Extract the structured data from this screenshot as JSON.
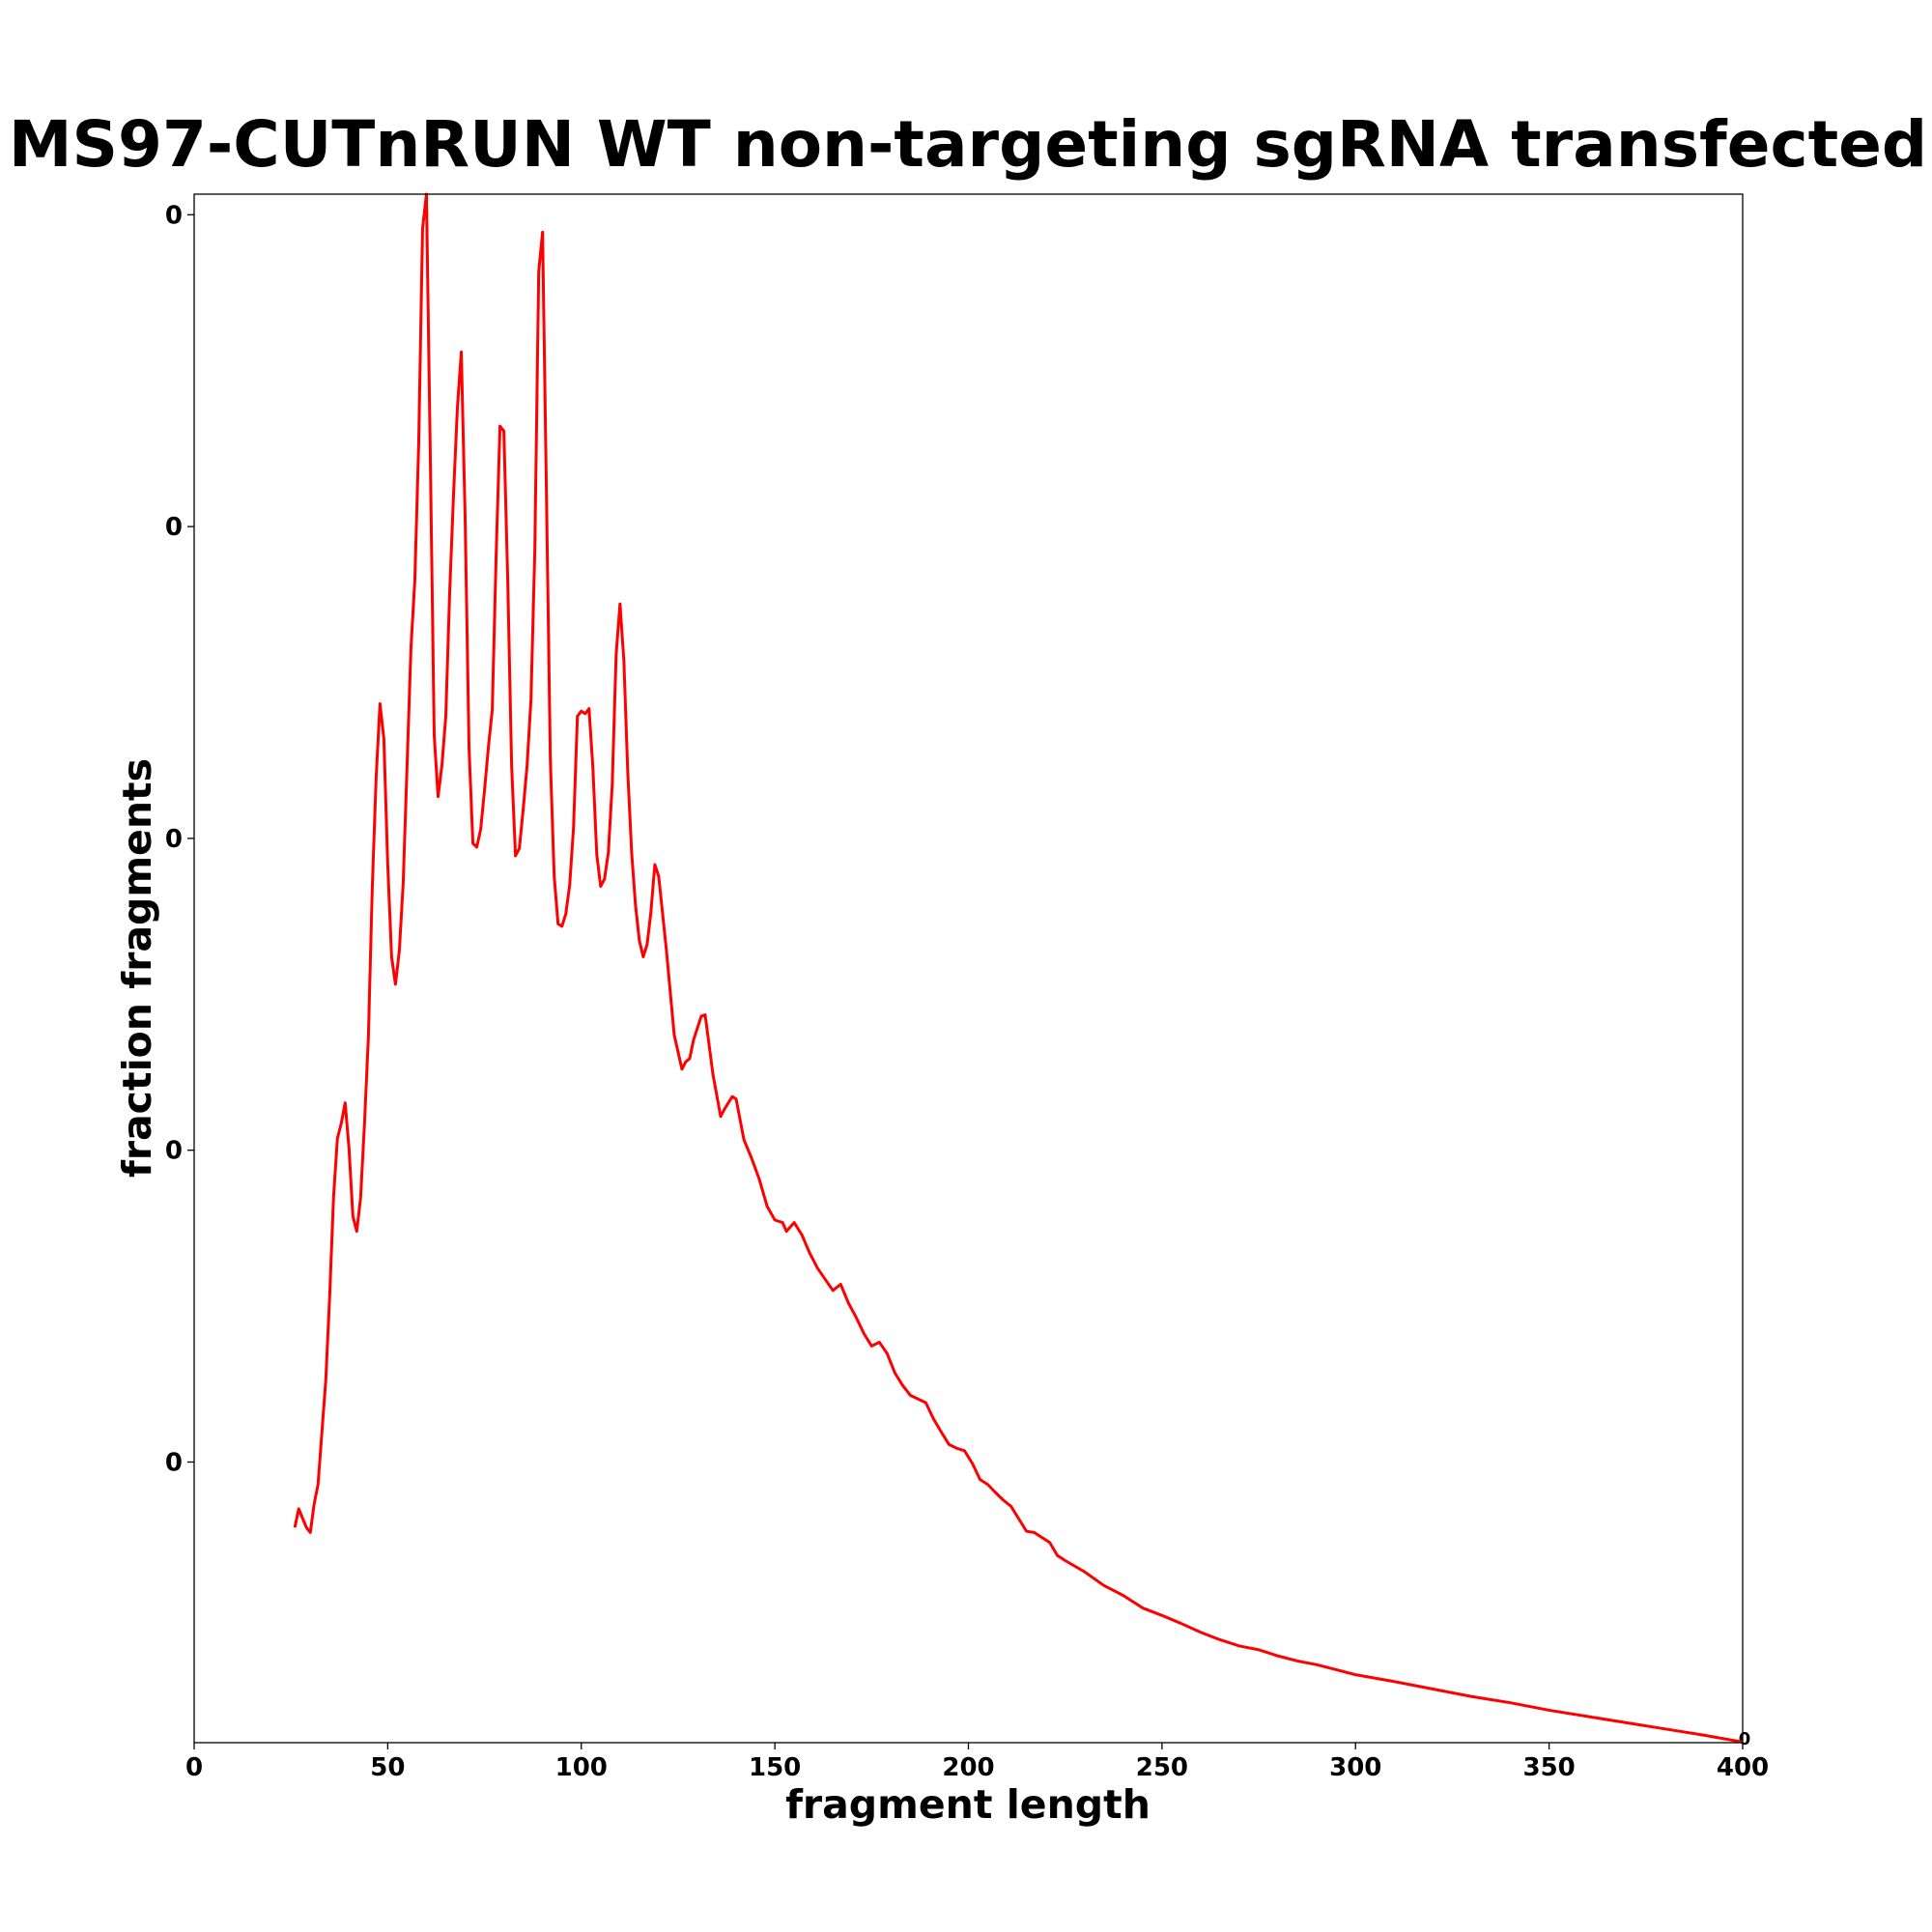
{
  "chart_data": {
    "type": "line",
    "title": "MS97-CUTnRUN WT non-targeting sgRNA transfected",
    "xlabel": "fragment length",
    "ylabel": "fraction fragments",
    "offset_text": "0",
    "color": "#ff0000",
    "x": [
      26,
      27,
      29,
      30,
      31,
      32,
      33,
      34,
      35,
      36,
      37,
      38,
      39,
      40,
      41,
      42,
      43,
      44,
      45,
      46,
      47,
      48,
      49,
      50,
      51,
      52,
      53,
      54,
      55,
      56,
      57,
      58,
      59,
      60,
      61,
      62,
      63,
      64,
      65,
      66,
      67,
      68,
      69,
      70,
      71,
      72,
      73,
      74,
      75,
      76,
      77,
      78,
      79,
      80,
      81,
      82,
      83,
      84,
      85,
      86,
      87,
      88,
      89,
      90,
      91,
      92,
      93,
      94,
      95,
      96,
      97,
      98,
      99,
      100,
      101,
      102,
      103,
      104,
      105,
      106,
      107,
      108,
      109,
      110,
      111,
      112,
      113,
      114,
      115,
      116,
      117,
      118,
      119,
      120,
      122,
      124,
      126,
      127,
      128,
      129,
      131,
      132,
      134,
      136,
      137,
      139,
      140,
      142,
      144,
      146,
      148,
      150,
      152,
      153,
      155,
      157,
      159,
      161,
      163,
      165,
      167,
      169,
      171,
      173,
      175,
      177,
      179,
      181,
      183,
      185,
      187,
      189,
      191,
      193,
      195,
      197,
      199,
      201,
      203,
      205,
      207,
      209,
      211,
      213,
      215,
      217,
      219,
      221,
      223,
      225,
      230,
      235,
      240,
      245,
      250,
      255,
      260,
      265,
      270,
      275,
      280,
      285,
      290,
      295,
      300,
      310,
      320,
      330,
      340,
      350,
      360,
      370,
      380,
      390,
      400
    ],
    "values": [
      0.00395,
      0.00425,
      0.00395,
      0.00387,
      0.00433,
      0.00464,
      0.00548,
      0.00631,
      0.00765,
      0.00924,
      0.01019,
      0.01043,
      0.01076,
      0.01003,
      0.00894,
      0.0087,
      0.00924,
      0.01043,
      0.01181,
      0.01419,
      0.01597,
      0.01716,
      0.0166,
      0.01458,
      0.0131,
      0.01266,
      0.0132,
      0.01429,
      0.01617,
      0.01805,
      0.01914,
      0.02132,
      0.02478,
      0.02533,
      0.02112,
      0.01666,
      0.01567,
      0.01617,
      0.01696,
      0.01894,
      0.02052,
      0.02191,
      0.0228,
      0.02013,
      0.01646,
      0.01492,
      0.01486,
      0.01514,
      0.01577,
      0.01646,
      0.01706,
      0.01953,
      0.02161,
      0.02153,
      0.01914,
      0.01617,
      0.01472,
      0.01484,
      0.01547,
      0.01617,
      0.01722,
      0.01963,
      0.02409,
      0.02472,
      0.02052,
      0.01627,
      0.01439,
      0.01363,
      0.01359,
      0.01379,
      0.01425,
      0.01518,
      0.01696,
      0.01704,
      0.017,
      0.01708,
      0.01613,
      0.01474,
      0.01423,
      0.01435,
      0.01478,
      0.01587,
      0.01795,
      0.01876,
      0.01785,
      0.01607,
      0.01478,
      0.01393,
      0.01336,
      0.0131,
      0.0133,
      0.01383,
      0.01458,
      0.01439,
      0.0132,
      0.01185,
      0.0113,
      0.01142,
      0.01147,
      0.01177,
      0.01215,
      0.01217,
      0.01122,
      0.01054,
      0.01066,
      0.01086,
      0.01082,
      0.01017,
      0.00987,
      0.00953,
      0.0091,
      0.00888,
      0.00884,
      0.0087,
      0.00884,
      0.00864,
      0.00835,
      0.00811,
      0.00793,
      0.00775,
      0.00785,
      0.00755,
      0.00732,
      0.00706,
      0.00686,
      0.00692,
      0.00674,
      0.00643,
      0.00623,
      0.00607,
      0.00601,
      0.00595,
      0.00569,
      0.00548,
      0.00528,
      0.00522,
      0.00518,
      0.00498,
      0.00472,
      0.00464,
      0.00451,
      0.00439,
      0.00429,
      0.00409,
      0.00389,
      0.00387,
      0.00379,
      0.00371,
      0.0035,
      0.00342,
      0.00324,
      0.00302,
      0.00286,
      0.00266,
      0.00254,
      0.00241,
      0.00227,
      0.00215,
      0.00205,
      0.00199,
      0.00189,
      0.00181,
      0.00175,
      0.00167,
      0.00159,
      0.00148,
      0.00136,
      0.00124,
      0.00114,
      0.00102,
      0.00092,
      0.00082,
      0.00072,
      0.00062,
      0.00051
    ],
    "xlim": [
      0,
      400
    ],
    "xticks": [
      0,
      50,
      100,
      150,
      200,
      250,
      300,
      350,
      400
    ],
    "ylim": [
      0.0005,
      0.02533
    ],
    "yticks": [
      {
        "value": 0.005,
        "label": "0"
      },
      {
        "value": 0.01,
        "label": "0"
      },
      {
        "value": 0.015,
        "label": "0"
      },
      {
        "value": 0.02,
        "label": "0"
      },
      {
        "value": 0.025,
        "label": "0"
      }
    ],
    "grid": false
  }
}
